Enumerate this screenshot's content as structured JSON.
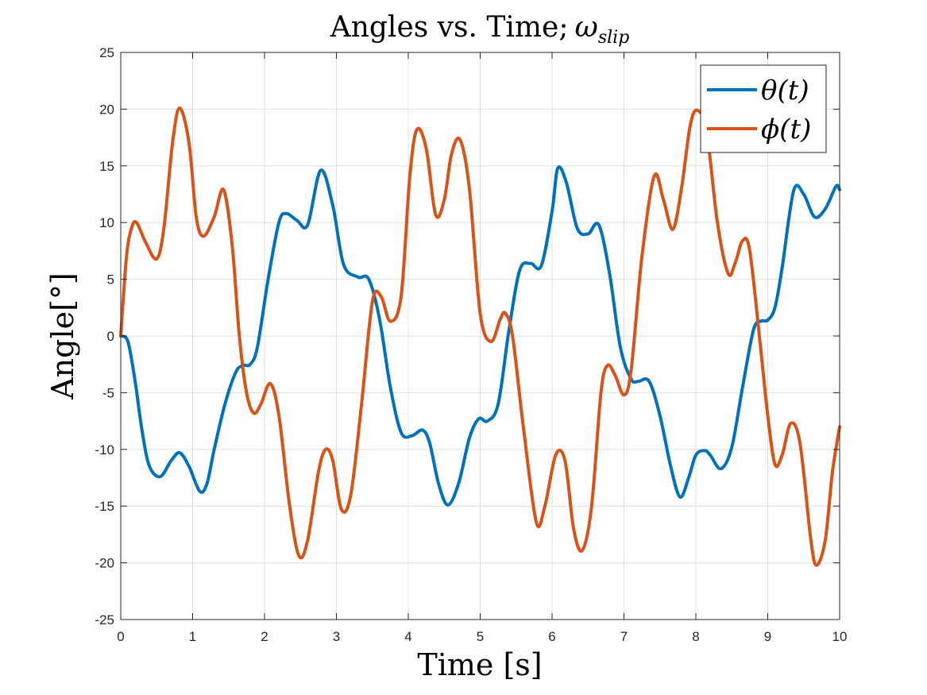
{
  "chart_data": {
    "type": "line",
    "title": "Angles vs. Time;",
    "title_symbol": "ω",
    "title_subscript": "slip",
    "xlabel": "Time [s]",
    "ylabel": "Angle[°]",
    "xlim": [
      0,
      10
    ],
    "ylim": [
      -25,
      25
    ],
    "xticks": [
      0,
      1,
      2,
      3,
      4,
      5,
      6,
      7,
      8,
      9,
      10
    ],
    "yticks": [
      -25,
      -20,
      -15,
      -10,
      -5,
      0,
      5,
      10,
      15,
      20,
      25
    ],
    "grid": true,
    "legend_position": "top-right",
    "series": [
      {
        "name": "θ(t)",
        "color": "#0072BD",
        "x": [
          0,
          0.1,
          0.2,
          0.3,
          0.4,
          0.55,
          0.7,
          0.82,
          0.95,
          1.1,
          1.2,
          1.3,
          1.45,
          1.6,
          1.7,
          1.8,
          1.9,
          2.05,
          2.2,
          2.3,
          2.45,
          2.6,
          2.78,
          2.95,
          3.1,
          3.3,
          3.45,
          3.6,
          3.75,
          3.9,
          4.05,
          4.2,
          4.3,
          4.42,
          4.55,
          4.7,
          4.85,
          4.98,
          5.1,
          5.25,
          5.4,
          5.55,
          5.7,
          5.85,
          6.0,
          6.08,
          6.2,
          6.35,
          6.5,
          6.65,
          6.8,
          6.95,
          7.1,
          7.2,
          7.35,
          7.5,
          7.65,
          7.78,
          7.9,
          8.0,
          8.12,
          8.2,
          8.35,
          8.5,
          8.65,
          8.8,
          8.9,
          9.0,
          9.1,
          9.2,
          9.36,
          9.5,
          9.65,
          9.8,
          9.95,
          10.0
        ],
        "y": [
          0,
          -0.5,
          -4,
          -8.5,
          -11.5,
          -12.4,
          -11,
          -10.3,
          -11.5,
          -13.7,
          -13,
          -10,
          -6,
          -3.2,
          -2.6,
          -2.5,
          -1,
          5,
          10,
          10.8,
          10.2,
          9.8,
          14.6,
          11.5,
          6.3,
          5.2,
          5,
          1.5,
          -4.5,
          -8.5,
          -8.8,
          -8.3,
          -9.5,
          -13,
          -14.9,
          -13,
          -9,
          -7.3,
          -7.5,
          -6,
          0.5,
          5.8,
          6.4,
          6.2,
          11,
          14.8,
          13.5,
          9.5,
          9.0,
          9.8,
          5.5,
          -1,
          -3.8,
          -4.0,
          -4.0,
          -7,
          -11.5,
          -14.2,
          -12.5,
          -10.5,
          -10.1,
          -10.5,
          -11.7,
          -9.8,
          -4.5,
          0.5,
          1.3,
          1.4,
          2.5,
          6,
          12.8,
          12.5,
          10.5,
          11.2,
          13.2,
          12.9
        ]
      },
      {
        "name": "ϕ(t)",
        "color": "#D95319",
        "x": [
          0,
          0.08,
          0.15,
          0.22,
          0.35,
          0.5,
          0.6,
          0.72,
          0.82,
          0.95,
          1.05,
          1.15,
          1.3,
          1.43,
          1.55,
          1.65,
          1.75,
          1.85,
          1.95,
          2.08,
          2.2,
          2.35,
          2.48,
          2.6,
          2.75,
          2.85,
          2.95,
          3.07,
          3.2,
          3.35,
          3.5,
          3.62,
          3.75,
          3.9,
          4.02,
          4.12,
          4.25,
          4.38,
          4.5,
          4.6,
          4.72,
          4.85,
          5.0,
          5.15,
          5.28,
          5.35,
          5.45,
          5.6,
          5.78,
          5.9,
          6.05,
          6.18,
          6.3,
          6.42,
          6.55,
          6.68,
          6.77,
          6.88,
          7.0,
          7.1,
          7.25,
          7.42,
          7.55,
          7.68,
          7.8,
          7.92,
          8.02,
          8.15,
          8.3,
          8.45,
          8.55,
          8.65,
          8.75,
          8.9,
          9.0,
          9.1,
          9.2,
          9.32,
          9.45,
          9.6,
          9.68,
          9.8,
          9.9,
          10.0
        ],
        "y": [
          0,
          7,
          9.5,
          10,
          8.2,
          6.8,
          9.5,
          17,
          20.1,
          17,
          10.5,
          8.8,
          10.5,
          12.9,
          8,
          0,
          -5,
          -6.8,
          -6,
          -4.2,
          -7,
          -15,
          -19.4,
          -18,
          -12,
          -10,
          -11,
          -15.3,
          -14,
          -6,
          3,
          3.5,
          1.3,
          3.5,
          14,
          18.2,
          16.5,
          10.7,
          12,
          16,
          17.3,
          13,
          2,
          -0.5,
          1.5,
          2,
          0,
          -8,
          -16.4,
          -15,
          -10.5,
          -11,
          -17,
          -18.9,
          -15,
          -5,
          -2.6,
          -3.5,
          -5.2,
          -3,
          7,
          14.1,
          12,
          9.4,
          13,
          18.5,
          19.9,
          18,
          10,
          5.5,
          6.5,
          8.4,
          7.5,
          -1,
          -7,
          -11.3,
          -10.5,
          -7.7,
          -9.5,
          -18,
          -20.2,
          -18,
          -12,
          -8
        ]
      }
    ]
  }
}
